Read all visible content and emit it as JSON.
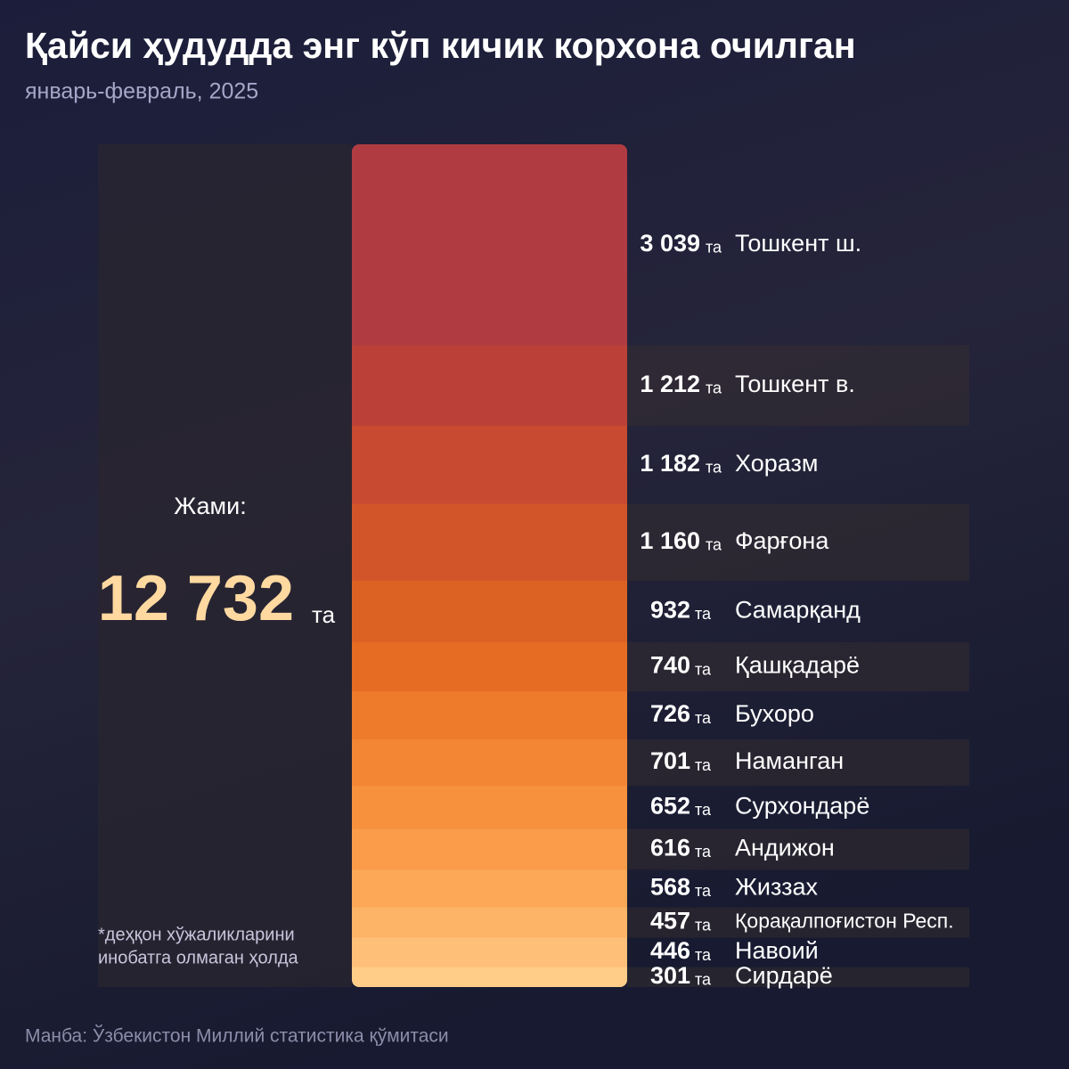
{
  "chart_data": {
    "type": "stack",
    "title": "Қайси ҳудудда энг кўп кичик корхона очилган",
    "subtitle": "январь-февраль, 2025",
    "total_title": "Жами:",
    "total": {
      "value": 12732,
      "label": "12 732"
    },
    "unit": "та",
    "note": [
      "*деҳқон хўжаликларини",
      "инобатга олмаган ҳолда"
    ],
    "source": "Манба: Ўзбекистон Миллий статистика қўмитаси",
    "categories": [
      "Тошкент ш.",
      "Тошкент в.",
      "Хоразм",
      "Фарғона",
      "Самарқанд",
      "Қашқадарё",
      "Бухоро",
      "Наманган",
      "Сурхондарё",
      "Андижон",
      "Жиззах",
      "Қорақалпоғистон Респ.",
      "Навоий",
      "Сирдарё"
    ],
    "values": [
      3039,
      1212,
      1182,
      1160,
      932,
      740,
      726,
      701,
      652,
      616,
      568,
      457,
      446,
      301
    ],
    "value_labels": [
      "3 039",
      "1 212",
      "1 182",
      "1 160",
      "932",
      "740",
      "726",
      "701",
      "652",
      "616",
      "568",
      "457",
      "446",
      "301"
    ],
    "colors": [
      "#b03c42",
      "#bb4138",
      "#c84a30",
      "#d2552a",
      "#dc6224",
      "#e56c22",
      "#ee7a2c",
      "#f38634",
      "#f7913e",
      "#fa9c4a",
      "#fca856",
      "#fdb466",
      "#fec078",
      "#ffcd88"
    ]
  }
}
